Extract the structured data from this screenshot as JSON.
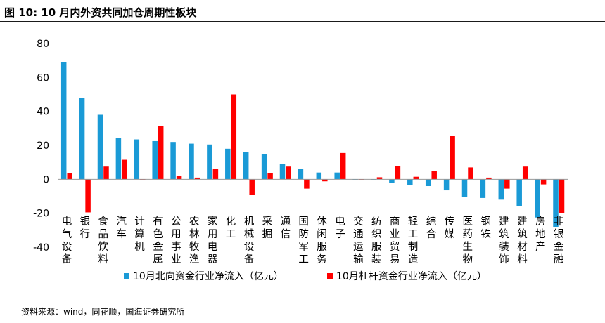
{
  "header": {
    "title": "图 10:  10 月内外资共同加仓周期性板块"
  },
  "source": "资料来源：wind，同花顺，国海证券研究所",
  "chart_data": {
    "type": "bar",
    "title": "",
    "xlabel": "",
    "ylabel": "",
    "ylim": [
      -40,
      80
    ],
    "yticks": [
      80,
      60,
      40,
      20,
      0,
      -20,
      -40
    ],
    "grid": false,
    "legend_position": "bottom",
    "categories": [
      "电气设备",
      "银行",
      "食品饮料",
      "汽车",
      "计算机",
      "有色金属",
      "公用事业",
      "农林牧渔",
      "家用电器",
      "化工",
      "机械设备",
      "采掘",
      "通信",
      "国防军工",
      "休闲服务",
      "电子",
      "交通运输",
      "纺织服装",
      "商业贸易",
      "轻工制造",
      "综合",
      "传媒",
      "医药生物",
      "钢铁",
      "建筑装饰",
      "建筑材料",
      "房地产",
      "非银金融"
    ],
    "series": [
      {
        "name": "10月北向资金行业净流入（亿元）",
        "color": "#1a9ad6",
        "values": [
          69,
          48,
          38,
          24.5,
          23.5,
          22.5,
          22,
          21,
          20.5,
          18,
          16,
          15,
          9,
          6,
          4,
          4,
          -0.5,
          -0.5,
          -2,
          -3.5,
          -4,
          -6.5,
          -10.5,
          -11,
          -12,
          -16,
          -22.5,
          -28
        ]
      },
      {
        "name": "10月杠杆资金行业净流入（亿元）",
        "color": "#ff0000",
        "values": [
          3.8,
          -19.5,
          7.5,
          11.5,
          -0.5,
          31.5,
          2,
          1,
          6,
          50,
          -9,
          3.8,
          7.5,
          -5.5,
          -1.2,
          15.5,
          -0.5,
          1.2,
          8,
          1.5,
          5,
          25.5,
          7,
          1,
          -5.5,
          7.5,
          -3,
          -20
        ]
      }
    ]
  },
  "labels": {
    "y_ticks": [
      "80",
      "60",
      "40",
      "20",
      "0",
      "-20",
      "-40"
    ]
  }
}
